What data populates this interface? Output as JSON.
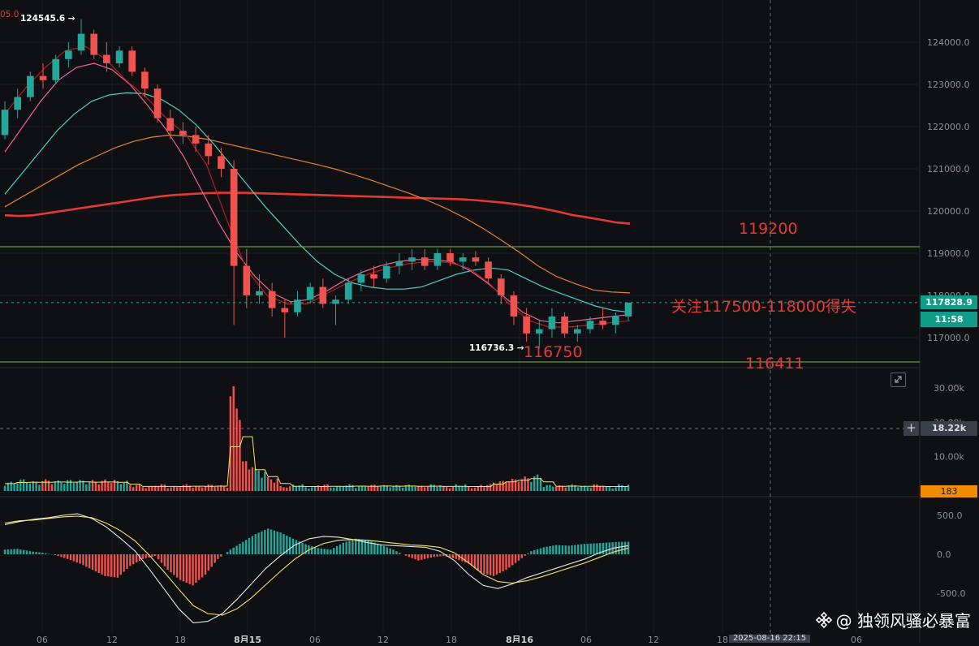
{
  "chart_data": [
    {
      "type": "candlestick",
      "title": "",
      "y_ticks": [
        "117000.0",
        "118000.0",
        "119000.0",
        "120000.0",
        "121000.0",
        "122000.0",
        "123000.0",
        "124000.0"
      ],
      "ylim": [
        116500,
        125000
      ],
      "x_ticks": [
        "06",
        "12",
        "18",
        "8月15",
        "06",
        "12",
        "18",
        "8月16",
        "06",
        "12",
        "18",
        "06"
      ],
      "candles_ohlc": [
        [
          121800,
          122600,
          121700,
          122400
        ],
        [
          122400,
          122900,
          122200,
          122700
        ],
        [
          122700,
          123300,
          122600,
          123200
        ],
        [
          123200,
          123500,
          122900,
          123100
        ],
        [
          123100,
          123700,
          123000,
          123600
        ],
        [
          123600,
          124000,
          123400,
          123800
        ],
        [
          123800,
          124545.6,
          123700,
          124200
        ],
        [
          124200,
          124300,
          123600,
          123700
        ],
        [
          123700,
          124000,
          123300,
          123500
        ],
        [
          123500,
          123900,
          123400,
          123800
        ],
        [
          123800,
          123900,
          123200,
          123300
        ],
        [
          123300,
          123400,
          122700,
          122900
        ],
        [
          122900,
          123000,
          122100,
          122200
        ],
        [
          122200,
          122400,
          121700,
          121900
        ],
        [
          121900,
          122100,
          121600,
          121800
        ],
        [
          121800,
          122000,
          121400,
          121600
        ],
        [
          121600,
          121800,
          121100,
          121300
        ],
        [
          121300,
          121500,
          120800,
          121000
        ],
        [
          121000,
          121200,
          117300,
          118700
        ],
        [
          118700,
          119100,
          117700,
          118000
        ],
        [
          118000,
          118500,
          117800,
          118100
        ],
        [
          118100,
          118300,
          117500,
          117700
        ],
        [
          117700,
          117900,
          117000,
          117600
        ],
        [
          117600,
          118100,
          117500,
          117900
        ],
        [
          117900,
          118300,
          117800,
          118200
        ],
        [
          118200,
          118400,
          117700,
          117800
        ],
        [
          117800,
          118000,
          117300,
          117900
        ],
        [
          117900,
          118400,
          117800,
          118300
        ],
        [
          118300,
          118600,
          118100,
          118500
        ],
        [
          118500,
          118700,
          118200,
          118400
        ],
        [
          118400,
          118800,
          118300,
          118700
        ],
        [
          118700,
          119000,
          118500,
          118800
        ],
        [
          118800,
          119100,
          118600,
          118900
        ],
        [
          118900,
          119100,
          118600,
          118700
        ],
        [
          118700,
          119100,
          118600,
          119000
        ],
        [
          119000,
          119100,
          118700,
          118800
        ],
        [
          118800,
          119000,
          118600,
          118900
        ],
        [
          118900,
          119050,
          118700,
          118800
        ],
        [
          118800,
          118900,
          118300,
          118400
        ],
        [
          118400,
          118500,
          117800,
          118000
        ],
        [
          118000,
          118100,
          117300,
          117500
        ],
        [
          117500,
          117700,
          116900,
          117100
        ],
        [
          117100,
          117400,
          116736.3,
          117200
        ],
        [
          117200,
          117700,
          117000,
          117500
        ],
        [
          117500,
          117600,
          117000,
          117100
        ],
        [
          117100,
          117300,
          116900,
          117200
        ],
        [
          117200,
          117500,
          117100,
          117400
        ],
        [
          117400,
          117700,
          117200,
          117300
        ],
        [
          117300,
          117600,
          117100,
          117500
        ],
        [
          117500,
          117800,
          117400,
          117829
        ]
      ],
      "ma_series": [
        {
          "color": "#e53935",
          "values": [
            119900,
            119880,
            119900,
            119950,
            120000,
            120050,
            120100,
            120150,
            120200,
            120250,
            120300,
            120350,
            120380,
            120400,
            120420,
            120430,
            120430,
            120430,
            120420,
            120410,
            120400,
            120390,
            120380,
            120370,
            120360,
            120350,
            120340,
            120330,
            120320,
            120310,
            120300,
            120290,
            120280,
            120260,
            120230,
            120200,
            120160,
            120110,
            120050,
            119980,
            119900,
            119850,
            119790,
            119730,
            119700
          ]
        },
        {
          "color": "#e0852e",
          "values": [
            120100,
            120350,
            120600,
            120850,
            121100,
            121300,
            121500,
            121650,
            121750,
            121800,
            121770,
            121700,
            121600,
            121500,
            121400,
            121300,
            121200,
            121100,
            120990,
            120860,
            120720,
            120570,
            120420,
            120250,
            120060,
            119840,
            119590,
            119310,
            119020,
            118700,
            118450,
            118280,
            118130,
            118080,
            118060
          ]
        },
        {
          "color": "#4dd0c4",
          "values": [
            120400,
            120900,
            121400,
            121900,
            122300,
            122600,
            122750,
            122800,
            122780,
            122650,
            122400,
            122050,
            121600,
            121100,
            120600,
            120100,
            119650,
            119200,
            118800,
            118500,
            118300,
            118200,
            118150,
            118150,
            118200,
            118350,
            118500,
            118600,
            118650,
            118600,
            118400,
            118200,
            118050,
            117900,
            117750,
            117650,
            117600
          ]
        },
        {
          "color": "#f06292",
          "values": [
            121400,
            122000,
            122600,
            123100,
            123400,
            123500,
            123350,
            123000,
            122500,
            121950,
            121300,
            120500,
            119700,
            119000,
            118450,
            118050,
            117850,
            117900,
            118100,
            118350,
            118550,
            118700,
            118800,
            118850,
            118850,
            118800,
            118600,
            118300,
            117950,
            117600,
            117400,
            117350,
            117400,
            117450,
            117500,
            117550
          ]
        },
        {
          "color": "#b71c1c",
          "values": [
            122300,
            122900,
            123400,
            123800,
            123900,
            123600,
            123100,
            122700,
            122200,
            121800,
            121100,
            119800,
            118600,
            118000,
            117800,
            117800,
            118050,
            118300,
            118500,
            118650,
            118750,
            118800,
            118780,
            118650,
            118300,
            117800,
            117400,
            117250,
            117250,
            117300,
            117350,
            117400
          ]
        }
      ],
      "horizontal_lines": [
        119200,
        116411
      ],
      "current_price": "117828.9",
      "countdown": "11:58",
      "annotations": {
        "top_left_value": "05.0",
        "high": "124545.6 →",
        "low": "116736.3 →",
        "level_119200": "119200",
        "focus": "关注117500-118000得失",
        "level_116750": "116750",
        "level_116411": "116411"
      }
    },
    {
      "type": "bar",
      "title": "",
      "y_ticks": [
        "10.00k",
        "20.00k",
        "30.00k"
      ],
      "ylim": [
        0,
        32000
      ],
      "crosshair_value": "18.22k",
      "last_value": "183",
      "note": "volume histogram with moving average line"
    },
    {
      "type": "histogram",
      "title": "",
      "y_ticks": [
        "500.0",
        "0.0",
        "-500.0"
      ],
      "ylim": [
        -900,
        650
      ],
      "note": "MACD histogram with DIF and DEA lines"
    }
  ],
  "x_axis": {
    "crosshair_label": "2025-08-16 22:15"
  },
  "watermark": {
    "text": "@ 独领风骚必暴富"
  },
  "colors": {
    "up": "#26a69a",
    "down": "#ef5350",
    "annotation": "#e53935",
    "level_line": "#7cbb3e",
    "price_box": "#0f9d8a",
    "last_volume_box": "#ef8c00"
  }
}
